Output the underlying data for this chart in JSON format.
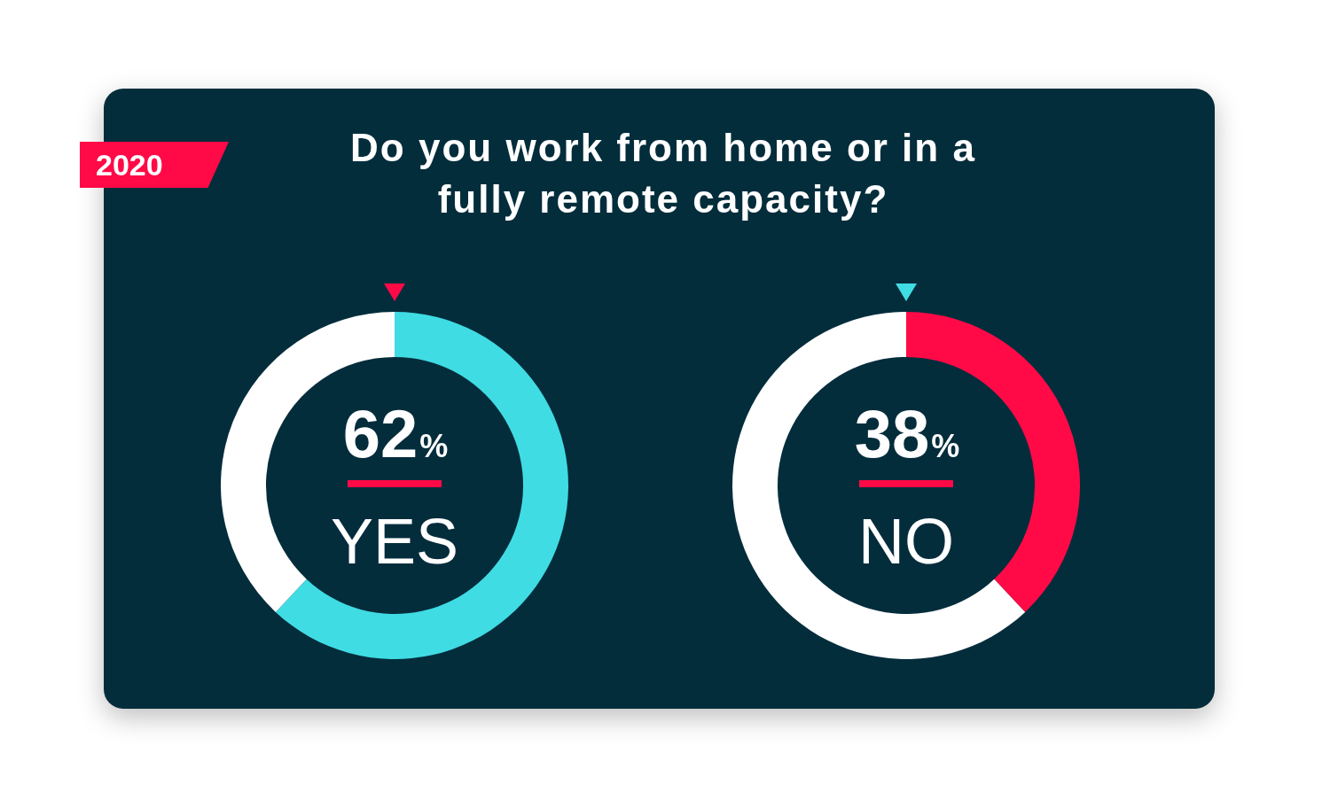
{
  "chart_data": [
    {
      "type": "donut",
      "title": "Do you work from home or in a fully remote capacity?",
      "annotations": [
        "2020"
      ],
      "categories": [
        "YES",
        null
      ],
      "values": [
        62,
        38
      ],
      "colors": [
        "#40dce4",
        "#ffffff"
      ],
      "value_labels": [
        "62%",
        null
      ]
    },
    {
      "type": "donut",
      "categories": [
        "NO",
        null
      ],
      "values": [
        38,
        62
      ],
      "colors": [
        "#ff0a47",
        "#ffffff"
      ],
      "value_labels": [
        "38%",
        null
      ]
    }
  ]
}
